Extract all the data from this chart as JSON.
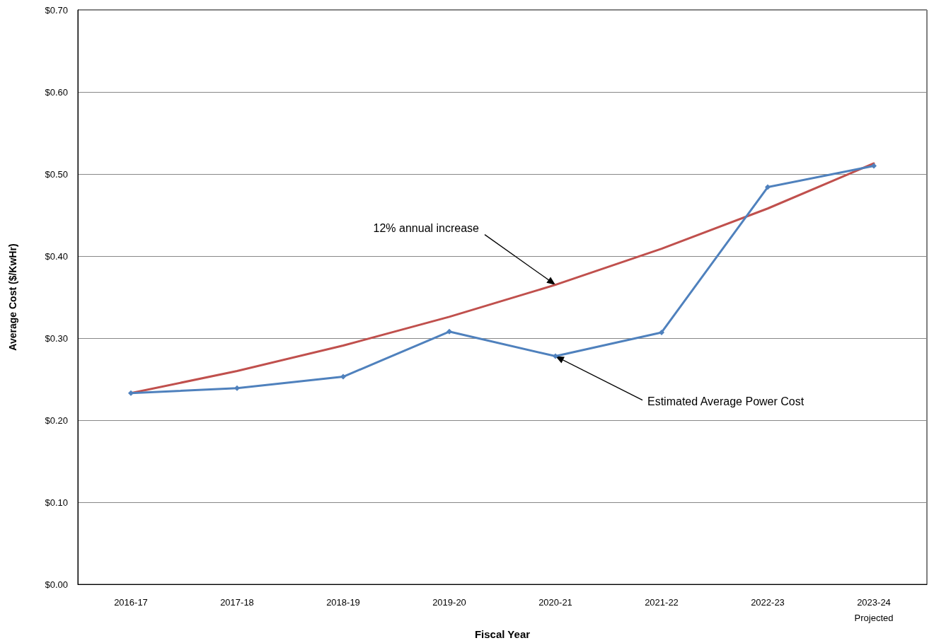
{
  "chart_data": {
    "type": "line",
    "xlabel": "Fiscal Year",
    "ylabel": "Average Cost ($/KwHr)",
    "categories": [
      "2016-17",
      "2017-18",
      "2018-19",
      "2019-20",
      "2020-21",
      "2021-22",
      "2022-23",
      "2023-24\nProjected"
    ],
    "series": [
      {
        "color": "#c0504d",
        "marker": "none",
        "values": [
          0.233,
          0.26,
          0.291,
          0.326,
          0.365,
          0.409,
          0.458,
          0.513
        ]
      },
      {
        "color": "#4f81bd",
        "marker": "diamond",
        "values": [
          0.233,
          0.239,
          0.253,
          0.308,
          0.278,
          0.307,
          0.484,
          0.51
        ]
      }
    ],
    "ylim": [
      0,
      0.7
    ],
    "yticks": [
      {
        "value": 0,
        "label": "$0.00"
      },
      {
        "value": 0.1,
        "label": "$0.10"
      },
      {
        "value": 0.2,
        "label": "$0.20"
      },
      {
        "value": 0.3,
        "label": "$0.30"
      },
      {
        "value": 0.4,
        "label": "$0.40"
      },
      {
        "value": 0.5,
        "label": "$0.50"
      },
      {
        "value": 0.6,
        "label": "$0.60"
      },
      {
        "value": 0.7,
        "label": "$0.70"
      }
    ],
    "grid": "y",
    "line_style": "solid",
    "annotations": [
      {
        "text": "12% annual increase",
        "x": "2020-21",
        "y": 0.365
      },
      {
        "text": "Estimated Average Power Cost",
        "x": "2020-21",
        "y": 0.278
      }
    ]
  }
}
